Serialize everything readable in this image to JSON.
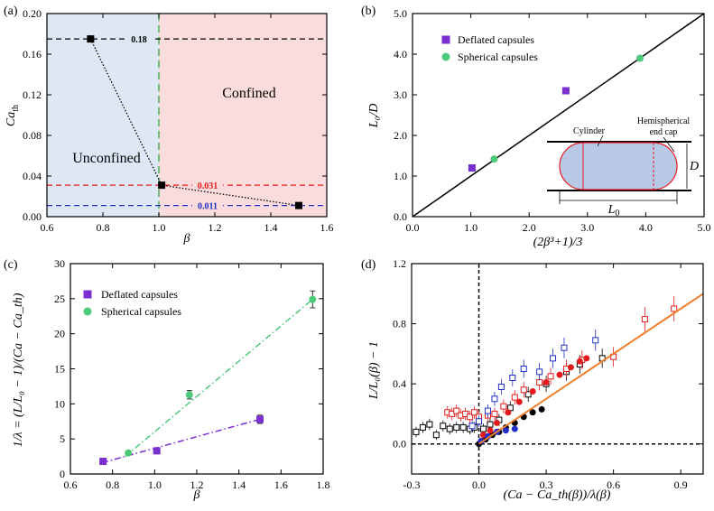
{
  "chart_data": [
    {
      "panel": "(a)",
      "type": "scatter",
      "xlabel": "β",
      "ylabel_main": "Ca",
      "ylabel_sub": "th",
      "xlim": [
        0.6,
        1.6
      ],
      "ylim": [
        0.0,
        0.2
      ],
      "xticks": [
        "0.6",
        "0.8",
        "1.0",
        "1.2",
        "1.4",
        "1.6"
      ],
      "yticks": [
        "0.00",
        "0.04",
        "0.08",
        "0.12",
        "0.16",
        "0.20"
      ],
      "points": [
        {
          "x": 0.756,
          "y": 0.175
        },
        {
          "x": 1.01,
          "y": 0.031
        },
        {
          "x": 1.5,
          "y": 0.011
        }
      ],
      "hlines": [
        {
          "y": 0.175,
          "label": "0.18",
          "color": "#000000"
        },
        {
          "y": 0.031,
          "label": "0.031",
          "color": "#e41a1c"
        },
        {
          "y": 0.011,
          "label": "0.011",
          "color": "#1f2ec7"
        }
      ],
      "vline": {
        "x": 1.0,
        "color": "#4caf50"
      },
      "regions": [
        {
          "label": "Unconfined",
          "color": "#dde8f4"
        },
        {
          "label": "Confined",
          "color": "#fadcdc"
        }
      ]
    },
    {
      "panel": "(b)",
      "type": "scatter",
      "xlabel": "(2β³+1)/3",
      "ylabel": "L₀/D",
      "xlim": [
        0.0,
        5.0
      ],
      "ylim": [
        0.0,
        5.0
      ],
      "xticks": [
        "0.0",
        "1.0",
        "2.0",
        "3.0",
        "4.0",
        "5.0"
      ],
      "yticks": [
        "0.0",
        "1.0",
        "2.0",
        "3.0",
        "4.0",
        "5.0"
      ],
      "line": {
        "x": [
          0.0,
          5.0
        ],
        "y": [
          0.0,
          5.0
        ],
        "color": "#000000"
      },
      "series": [
        {
          "name": "Deflated capsules",
          "color": "#7b2fd0",
          "marker": "square",
          "points": [
            {
              "x": 1.02,
              "y": 1.2
            },
            {
              "x": 2.63,
              "y": 3.1
            }
          ]
        },
        {
          "name": "Spherical capsules",
          "color": "#4cc97a",
          "marker": "circle",
          "points": [
            {
              "x": 1.4,
              "y": 1.42
            },
            {
              "x": 3.9,
              "y": 3.9
            }
          ]
        }
      ],
      "schematic": {
        "cylinder_label": "Cylinder",
        "cap_label_1": "Hemispherical",
        "cap_label_2": "end cap",
        "d_label": "D",
        "l0_label": "L",
        "l0_sub": "0"
      }
    },
    {
      "panel": "(c)",
      "type": "scatter",
      "xlabel": "β",
      "ylabel_text": "1/λ = (L/L₀ − 1)/(Ca − Ca_th)",
      "xlim": [
        0.6,
        1.8
      ],
      "ylim": [
        0,
        30
      ],
      "xticks": [
        "0.6",
        "0.8",
        "1.0",
        "1.2",
        "1.4",
        "1.6",
        "1.8"
      ],
      "yticks": [
        "0",
        "5",
        "10",
        "15",
        "20",
        "25",
        "30"
      ],
      "series": [
        {
          "name": "Deflated capsules",
          "color": "#7b2fd0",
          "marker": "square",
          "points": [
            {
              "x": 0.755,
              "y": 1.8,
              "err": 0.2
            },
            {
              "x": 1.01,
              "y": 3.3,
              "err": 0.2
            },
            {
              "x": 1.5,
              "y": 7.8,
              "err": 0.6
            }
          ]
        },
        {
          "name": "Spherical capsules",
          "color": "#4cc97a",
          "marker": "circle",
          "points": [
            {
              "x": 0.875,
              "y": 3.0,
              "err": 0.2
            },
            {
              "x": 1.165,
              "y": 11.3,
              "err": 0.6
            },
            {
              "x": 1.75,
              "y": 24.9,
              "err": 1.2
            }
          ]
        }
      ],
      "fits": [
        {
          "color": "#7b2fd0",
          "x": [
            0.75,
            1.5
          ],
          "y": [
            1.6,
            7.8
          ]
        },
        {
          "color": "#4cc97a",
          "x": [
            0.86,
            1.75
          ],
          "y": [
            2.5,
            24.9
          ]
        }
      ]
    },
    {
      "panel": "(d)",
      "type": "scatter",
      "xlabel": "(Ca − Ca_th(β))/λ(β)",
      "ylabel": "L/L₀(β) − 1",
      "xlim": [
        -0.3,
        1.0
      ],
      "ylim": [
        -0.2,
        1.2
      ],
      "xticks": [
        "-0.3",
        "0.0",
        "0.3",
        "0.6",
        "0.9"
      ],
      "yticks": [
        "0.0",
        "0.4",
        "0.8",
        "1.2"
      ],
      "fit": {
        "x": [
          0.0,
          1.0
        ],
        "y": [
          0.0,
          1.0
        ],
        "color": "#f07f2c"
      },
      "series": [
        {
          "name": "black open",
          "color": "#000000",
          "filled": false,
          "marker": "square",
          "points": [
            [
              -0.28,
              0.08
            ],
            [
              -0.25,
              0.11
            ],
            [
              -0.22,
              0.13
            ],
            [
              -0.19,
              0.06
            ],
            [
              -0.16,
              0.12
            ],
            [
              -0.13,
              0.1
            ],
            [
              -0.1,
              0.11
            ],
            [
              -0.07,
              0.11
            ],
            [
              -0.04,
              0.1
            ],
            [
              -0.02,
              0.11
            ],
            [
              0.02,
              0.1
            ],
            [
              0.05,
              0.13
            ],
            [
              0.09,
              0.16
            ],
            [
              0.14,
              0.24
            ],
            [
              0.22,
              0.33
            ],
            [
              0.3,
              0.4
            ],
            [
              0.39,
              0.48
            ],
            [
              0.45,
              0.53
            ],
            [
              0.55,
              0.57
            ]
          ]
        },
        {
          "name": "black filled",
          "color": "#000000",
          "filled": true,
          "marker": "circle",
          "points": [
            [
              0.0,
              0.0
            ],
            [
              0.03,
              0.03
            ],
            [
              0.06,
              0.06
            ],
            [
              0.09,
              0.08
            ],
            [
              0.12,
              0.11
            ],
            [
              0.16,
              0.14
            ],
            [
              0.2,
              0.18
            ],
            [
              0.24,
              0.21
            ],
            [
              0.28,
              0.23
            ]
          ]
        },
        {
          "name": "red open",
          "color": "#e41a1c",
          "filled": false,
          "marker": "square",
          "points": [
            [
              -0.14,
              0.21
            ],
            [
              -0.12,
              0.2
            ],
            [
              -0.1,
              0.22
            ],
            [
              -0.08,
              0.19
            ],
            [
              -0.06,
              0.2
            ],
            [
              -0.04,
              0.18
            ],
            [
              -0.02,
              0.21
            ],
            [
              0.0,
              0.18
            ],
            [
              0.04,
              0.19
            ],
            [
              0.07,
              0.2
            ],
            [
              0.11,
              0.25
            ],
            [
              0.16,
              0.31
            ],
            [
              0.2,
              0.36
            ],
            [
              0.27,
              0.41
            ],
            [
              0.32,
              0.45
            ],
            [
              0.39,
              0.5
            ],
            [
              0.46,
              0.56
            ],
            [
              0.6,
              0.58
            ],
            [
              0.74,
              0.83
            ],
            [
              0.87,
              0.9
            ]
          ]
        },
        {
          "name": "red filled",
          "color": "#e41a1c",
          "filled": true,
          "marker": "circle",
          "points": [
            [
              0.02,
              0.06
            ],
            [
              0.05,
              0.09
            ],
            [
              0.08,
              0.14
            ],
            [
              0.13,
              0.21
            ],
            [
              0.18,
              0.28
            ],
            [
              0.24,
              0.35
            ],
            [
              0.3,
              0.41
            ],
            [
              0.36,
              0.46
            ],
            [
              0.41,
              0.51
            ],
            [
              0.45,
              0.55
            ],
            [
              0.48,
              0.57
            ]
          ]
        },
        {
          "name": "blue open",
          "color": "#1f2ec7",
          "filled": false,
          "marker": "square",
          "points": [
            [
              -0.03,
              0.12
            ],
            [
              0.0,
              0.15
            ],
            [
              0.04,
              0.22
            ],
            [
              0.07,
              0.3
            ],
            [
              0.1,
              0.38
            ],
            [
              0.15,
              0.44
            ],
            [
              0.2,
              0.5
            ],
            [
              0.27,
              0.48
            ],
            [
              0.33,
              0.57
            ],
            [
              0.38,
              0.64
            ],
            [
              0.52,
              0.69
            ]
          ]
        },
        {
          "name": "blue filled",
          "color": "#1f2ec7",
          "filled": true,
          "marker": "circle",
          "points": [
            [
              0.01,
              0.02
            ],
            [
              0.04,
              0.05
            ],
            [
              0.08,
              0.08
            ],
            [
              0.12,
              0.09
            ],
            [
              0.16,
              0.1
            ]
          ]
        }
      ]
    }
  ]
}
